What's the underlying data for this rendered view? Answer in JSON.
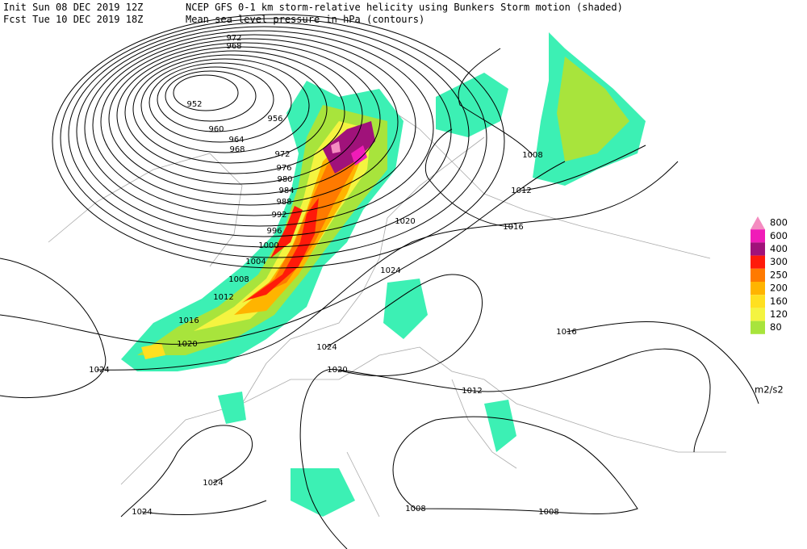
{
  "header": {
    "init": "Init  Sun 08 DEC 2019 12Z",
    "fcst": "Fcst Tue 10 DEC 2019 18Z",
    "title": "NCEP GFS 0-1 km storm-relative helicity using Bunkers Storm motion (shaded)",
    "subtitle": "Mean sea level pressure in hPa (contours)"
  },
  "legend": {
    "unit": "m2/s2",
    "levels": [
      {
        "label": "800",
        "color": "#f48cc0"
      },
      {
        "label": "600",
        "color": "#f01cb8"
      },
      {
        "label": "400",
        "color": "#a0127a"
      },
      {
        "label": "300",
        "color": "#ff1a0a"
      },
      {
        "label": "250",
        "color": "#ff7a00"
      },
      {
        "label": "200",
        "color": "#ffb400"
      },
      {
        "label": "160",
        "color": "#ffe020"
      },
      {
        "label": "120",
        "color": "#f4f440"
      },
      {
        "label": "80",
        "color": "#a8e43c"
      }
    ],
    "base_color": "#3cf0b4"
  },
  "contour_labels": [
    "972",
    "968",
    "952",
    "956",
    "960",
    "964",
    "968",
    "972",
    "976",
    "980",
    "984",
    "988",
    "992",
    "996",
    "1000",
    "1004",
    "1008",
    "1012",
    "1016",
    "1020",
    "1024",
    "1020",
    "1024",
    "1024",
    "1020",
    "1016",
    "1012",
    "1008",
    "1016",
    "1012",
    "1024",
    "1024",
    "1008",
    "1008"
  ]
}
